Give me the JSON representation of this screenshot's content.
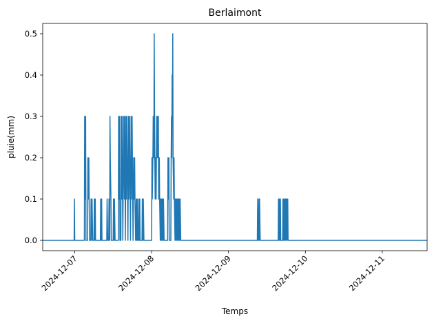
{
  "chart_data": {
    "type": "line",
    "title": "Berlaimont",
    "xlabel": "Temps",
    "ylabel": "pluie(mm)",
    "xlim": [
      "2024-12-06T14:00",
      "2024-12-11T14:00"
    ],
    "ylim": [
      -0.025,
      0.525
    ],
    "x_ticks": [
      "2024-12-07",
      "2024-12-08",
      "2024-12-09",
      "2024-12-10",
      "2024-12-11"
    ],
    "y_ticks": [
      "0.0",
      "0.1",
      "0.2",
      "0.3",
      "0.4",
      "0.5"
    ],
    "grid": false,
    "legend": "none",
    "color": "#1f77b4",
    "series": [
      {
        "x": [
          "2024-12-06T14:00",
          "2024-12-06T23:48",
          "2024-12-06T23:54",
          "2024-12-07T00:00",
          "2024-12-07T03:00",
          "2024-12-07T03:06",
          "2024-12-07T03:12",
          "2024-12-07T03:24",
          "2024-12-07T03:30",
          "2024-12-07T04:00",
          "2024-12-07T04:06",
          "2024-12-07T04:18",
          "2024-12-07T04:24",
          "2024-12-07T04:36",
          "2024-12-07T05:00",
          "2024-12-07T05:06",
          "2024-12-07T05:12",
          "2024-12-07T05:24",
          "2024-12-07T05:36",
          "2024-12-07T06:00",
          "2024-12-07T06:06",
          "2024-12-07T06:12",
          "2024-12-07T06:24",
          "2024-12-07T06:30",
          "2024-12-07T06:42",
          "2024-12-07T08:00",
          "2024-12-07T08:06",
          "2024-12-07T08:12",
          "2024-12-07T08:24",
          "2024-12-07T08:30",
          "2024-12-07T10:00",
          "2024-12-07T10:06",
          "2024-12-07T10:18",
          "2024-12-07T10:36",
          "2024-12-07T10:42",
          "2024-12-07T10:54",
          "2024-12-07T11:00",
          "2024-12-07T11:06",
          "2024-12-07T11:18",
          "2024-12-07T11:24",
          "2024-12-07T11:30",
          "2024-12-07T12:00",
          "2024-12-07T12:06",
          "2024-12-07T12:18",
          "2024-12-07T12:24",
          "2024-12-07T12:36",
          "2024-12-07T13:36",
          "2024-12-07T13:42",
          "2024-12-07T13:54",
          "2024-12-07T14:00",
          "2024-12-07T14:06",
          "2024-12-07T14:24",
          "2024-12-07T14:30",
          "2024-12-07T14:42",
          "2024-12-07T14:48",
          "2024-12-07T15:00",
          "2024-12-07T15:12",
          "2024-12-07T15:18",
          "2024-12-07T15:30",
          "2024-12-07T15:36",
          "2024-12-07T15:48",
          "2024-12-07T16:00",
          "2024-12-07T16:06",
          "2024-12-07T16:18",
          "2024-12-07T16:24",
          "2024-12-07T16:36",
          "2024-12-07T16:48",
          "2024-12-07T16:54",
          "2024-12-07T17:06",
          "2024-12-07T17:12",
          "2024-12-07T17:24",
          "2024-12-07T17:36",
          "2024-12-07T17:42",
          "2024-12-07T17:54",
          "2024-12-07T18:00",
          "2024-12-07T18:12",
          "2024-12-07T18:24",
          "2024-12-07T18:30",
          "2024-12-07T18:42",
          "2024-12-07T18:48",
          "2024-12-07T19:00",
          "2024-12-07T19:12",
          "2024-12-07T19:18",
          "2024-12-07T19:30",
          "2024-12-07T19:36",
          "2024-12-07T19:48",
          "2024-12-07T20:00",
          "2024-12-07T20:06",
          "2024-12-07T20:18",
          "2024-12-07T20:24",
          "2024-12-07T20:36",
          "2024-12-07T21:00",
          "2024-12-07T21:06",
          "2024-12-07T21:18",
          "2024-12-07T21:24",
          "2024-12-07T21:36",
          "2024-12-08T00:00",
          "2024-12-08T00:06",
          "2024-12-08T00:12",
          "2024-12-08T00:24",
          "2024-12-08T00:30",
          "2024-12-08T00:42",
          "2024-12-08T00:48",
          "2024-12-08T01:00",
          "2024-12-08T01:06",
          "2024-12-08T01:18",
          "2024-12-08T01:24",
          "2024-12-08T01:30",
          "2024-12-08T01:36",
          "2024-12-08T01:42",
          "2024-12-08T01:48",
          "2024-12-08T02:00",
          "2024-12-08T02:06",
          "2024-12-08T02:12",
          "2024-12-08T02:24",
          "2024-12-08T02:30",
          "2024-12-08T02:42",
          "2024-12-08T02:48",
          "2024-12-08T03:00",
          "2024-12-08T03:06",
          "2024-12-08T03:18",
          "2024-12-08T03:24",
          "2024-12-08T03:36",
          "2024-12-08T03:42",
          "2024-12-08T03:54",
          "2024-12-08T05:00",
          "2024-12-08T05:06",
          "2024-12-08T05:12",
          "2024-12-08T05:24",
          "2024-12-08T05:30",
          "2024-12-08T06:00",
          "2024-12-08T06:06",
          "2024-12-08T06:12",
          "2024-12-08T06:18",
          "2024-12-08T06:24",
          "2024-12-08T06:30",
          "2024-12-08T06:36",
          "2024-12-08T06:42",
          "2024-12-08T06:54",
          "2024-12-08T07:00",
          "2024-12-08T07:06",
          "2024-12-08T07:18",
          "2024-12-08T07:24",
          "2024-12-08T07:36",
          "2024-12-08T07:42",
          "2024-12-08T07:54",
          "2024-12-08T08:00",
          "2024-12-08T08:12",
          "2024-12-08T08:18",
          "2024-12-08T08:30",
          "2024-12-08T08:36",
          "2024-12-08T08:48",
          "2024-12-08T08:54",
          "2024-12-08T09:06",
          "2024-12-09T09:00",
          "2024-12-09T09:06",
          "2024-12-09T09:12",
          "2024-12-09T09:18",
          "2024-12-09T09:30",
          "2024-12-09T09:36",
          "2024-12-09T09:42",
          "2024-12-09T09:54",
          "2024-12-09T15:30",
          "2024-12-09T15:36",
          "2024-12-09T15:42",
          "2024-12-09T15:54",
          "2024-12-09T16:00",
          "2024-12-09T16:12",
          "2024-12-09T16:18",
          "2024-12-09T16:30",
          "2024-12-09T16:54",
          "2024-12-09T17:00",
          "2024-12-09T17:06",
          "2024-12-09T17:18",
          "2024-12-09T17:24",
          "2024-12-09T17:36",
          "2024-12-09T17:42",
          "2024-12-09T17:54",
          "2024-12-09T18:00",
          "2024-12-09T18:12",
          "2024-12-09T18:18",
          "2024-12-09T18:30",
          "2024-12-09T18:36",
          "2024-12-09T18:48",
          "2024-12-11T14:00"
        ],
        "y": [
          0,
          0,
          0.1,
          0,
          0,
          0.3,
          0.1,
          0.3,
          0,
          0,
          0.2,
          0.1,
          0.2,
          0,
          0,
          0.1,
          0,
          0.1,
          0,
          0,
          0.1,
          0,
          0.1,
          0,
          0,
          0,
          0.1,
          0,
          0.1,
          0,
          0,
          0.1,
          0,
          0,
          0.1,
          0,
          0.3,
          0.2,
          0.1,
          0,
          0,
          0,
          0.1,
          0,
          0.1,
          0,
          0,
          0.3,
          0.1,
          0.3,
          0,
          0,
          0.3,
          0.1,
          0.3,
          0,
          0.2,
          0.3,
          0.1,
          0.3,
          0,
          0.3,
          0.1,
          0.3,
          0.2,
          0,
          0.3,
          0.1,
          0.3,
          0.2,
          0,
          0.3,
          0.1,
          0.3,
          0.2,
          0,
          0.2,
          0.1,
          0.2,
          0.1,
          0,
          0.1,
          0,
          0.1,
          0,
          0,
          0.1,
          0,
          0.1,
          0,
          0,
          0,
          0.1,
          0,
          0.1,
          0,
          0,
          0.2,
          0.1,
          0.2,
          0.3,
          0.2,
          0.5,
          0.2,
          0.1,
          0.2,
          0.1,
          0.2,
          0.3,
          0.2,
          0.3,
          0.2,
          0.3,
          0.1,
          0.2,
          0.1,
          0,
          0.1,
          0,
          0.1,
          0,
          0.1,
          0,
          0.1,
          0,
          0,
          0.2,
          0.1,
          0.2,
          0,
          0,
          0.2,
          0.3,
          0.2,
          0.4,
          0.3,
          0.5,
          0.2,
          0.1,
          0.2,
          0.1,
          0,
          0.1,
          0,
          0.1,
          0,
          0.1,
          0,
          0.1,
          0,
          0.1,
          0,
          0.1,
          0,
          0,
          0.1,
          0,
          0,
          0.1,
          0,
          0.1,
          0,
          0,
          0.1,
          0,
          0.1,
          0,
          0.1,
          0,
          0,
          0,
          0.1,
          0,
          0.1,
          0,
          0.1,
          0,
          0.1,
          0,
          0.1,
          0,
          0.1,
          0,
          0,
          0
        ]
      }
    ]
  }
}
